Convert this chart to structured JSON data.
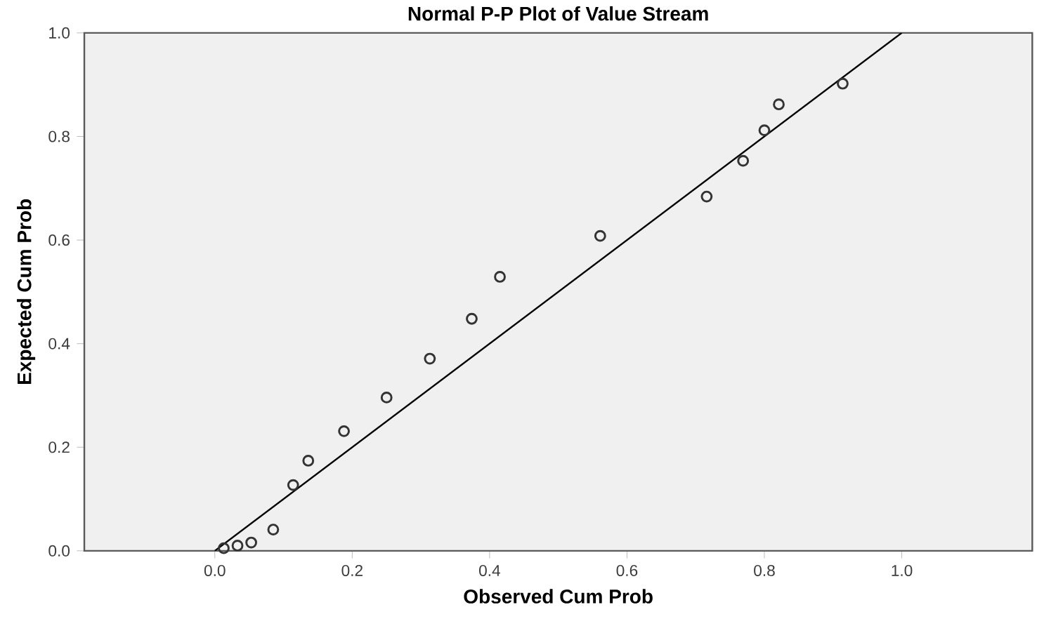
{
  "chart_data": {
    "type": "scatter",
    "title": "Normal P-P Plot of Value Stream",
    "xlabel": "Observed Cum Prob",
    "ylabel": "Expected Cum Prob",
    "xlim": [
      -0.19,
      1.19
    ],
    "ylim": [
      0,
      1
    ],
    "xticks": [
      {
        "value": 0,
        "label": "0.0"
      },
      0.2,
      0.4,
      0.6,
      0.8,
      {
        "value": 1,
        "label": "1.0"
      }
    ],
    "yticks": [
      {
        "value": 0,
        "label": "0.0"
      },
      0.2,
      0.4,
      0.6,
      0.8,
      {
        "value": 1,
        "label": "1.0"
      }
    ],
    "grid": false,
    "series": [
      {
        "marker": "circle",
        "color": "#333333",
        "x": [
          0.013,
          0.033,
          0.053,
          0.085,
          0.114,
          0.136,
          0.188,
          0.25,
          0.313,
          0.374,
          0.415,
          0.561,
          0.716,
          0.769,
          0.8,
          0.821,
          0.914
        ],
        "values": [
          0.005,
          0.01,
          0.016,
          0.041,
          0.127,
          0.174,
          0.231,
          0.296,
          0.371,
          0.448,
          0.529,
          0.608,
          0.684,
          0.753,
          0.812,
          0.862,
          0.902
        ]
      },
      {
        "type": "line",
        "marker": "none",
        "line_style": "solid",
        "color": "#000000",
        "x": [
          0,
          1
        ],
        "values": [
          0,
          1
        ]
      }
    ]
  }
}
